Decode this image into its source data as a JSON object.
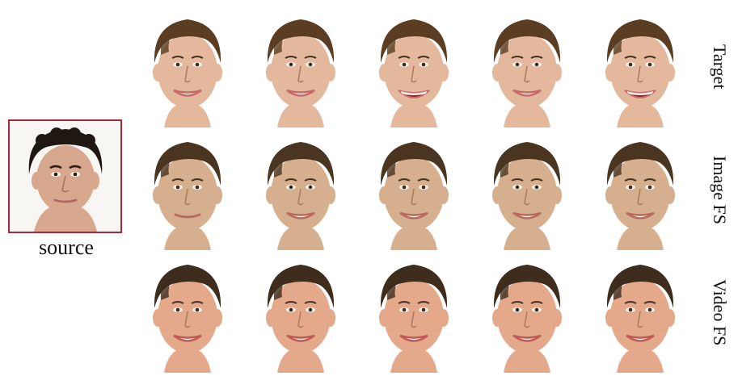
{
  "source": {
    "label": "source"
  },
  "rows": [
    {
      "label": "Target",
      "skin": "#e3b89c",
      "hair": "#5a3d22",
      "lips": "#c96a6a",
      "mouths": [
        "smile",
        "smile",
        "open",
        "smile",
        "open"
      ]
    },
    {
      "label": "Image FS",
      "skin": "#d6b08e",
      "hair": "#4a3520",
      "lips": "#b86a60",
      "mouths": [
        "closed",
        "smile",
        "smile",
        "smile",
        "smile"
      ]
    },
    {
      "label": "Video FS",
      "skin": "#e3a98a",
      "hair": "#3e2c1c",
      "lips": "#c05a55",
      "mouths": [
        "smile",
        "smile",
        "smile",
        "smile",
        "smile"
      ]
    }
  ],
  "source_face": {
    "skin": "#d8a88e",
    "hair": "#1e1712",
    "lips": "#b06a62"
  }
}
